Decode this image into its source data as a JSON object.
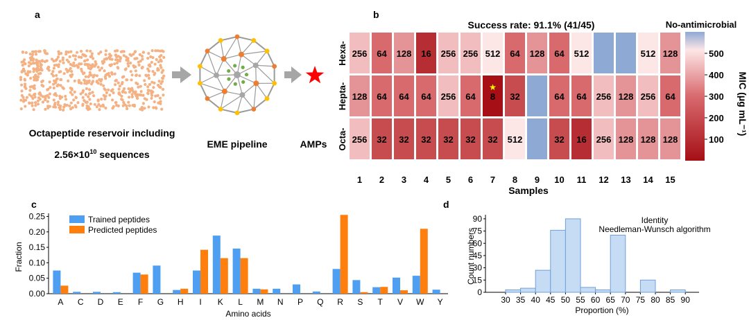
{
  "panels": {
    "a": {
      "letter": "a",
      "reservoir_caption": "Octapeptide reservoir including",
      "reservoir_count_base": "2.56×10",
      "reservoir_count_exp": "10",
      "reservoir_count_suffix": " sequences",
      "pipeline_label": "EME pipeline",
      "output_label": "AMPs"
    },
    "b": {
      "letter": "b"
    },
    "c": {
      "letter": "c"
    },
    "d": {
      "letter": "d"
    }
  },
  "colors": {
    "scatter_dot": "#f4b183",
    "arrow": "#a6a6a6",
    "star": "#ff0000",
    "node_orange": "#ed7d31",
    "node_yellow": "#ffc000",
    "node_green": "#70ad47",
    "node_gray": "#a6a6a6",
    "heat_low": "#a50f15",
    "heat_high": "#fde6e6",
    "no_antimicrobial": "#8eaad4",
    "trained": "#4e9ef2",
    "predicted": "#ff7f0e",
    "hist_fill": "#c6dcf4",
    "hist_edge": "#6ea0d8"
  },
  "chart_data": [
    {
      "id": "b",
      "type": "heatmap",
      "title": "Success rate: 91.1% (41/45)",
      "xlabel": "Samples",
      "rows": [
        "Hexa-",
        "Hepta-",
        "Octa-"
      ],
      "columns": [
        "1",
        "2",
        "3",
        "4",
        "5",
        "6",
        "7",
        "8",
        "9",
        "10",
        "11",
        "12",
        "13",
        "14",
        "15"
      ],
      "values": [
        [
          256,
          64,
          128,
          16,
          256,
          256,
          512,
          64,
          128,
          64,
          512,
          null,
          null,
          512,
          128
        ],
        [
          128,
          64,
          64,
          64,
          256,
          64,
          8,
          32,
          null,
          64,
          64,
          256,
          128,
          256,
          64
        ],
        [
          256,
          32,
          32,
          32,
          32,
          32,
          32,
          512,
          null,
          32,
          16,
          256,
          128,
          128,
          128
        ]
      ],
      "null_label": "No-antimicrobial",
      "highlight": {
        "row": 1,
        "column": 6,
        "marker": "★"
      },
      "colorbar": {
        "label": "MIC (μg mL⁻¹)",
        "range": [
          0,
          600
        ],
        "ticks": [
          100,
          200,
          300,
          400,
          500
        ]
      }
    },
    {
      "id": "c",
      "type": "bar",
      "xlabel": "Amino acids",
      "ylabel": "Fraction",
      "ylim": [
        0,
        0.26
      ],
      "yticks": [
        "0.00",
        "0.05",
        "0.10",
        "0.15",
        "0.20",
        "0.25"
      ],
      "categories": [
        "A",
        "C",
        "D",
        "E",
        "F",
        "G",
        "H",
        "I",
        "K",
        "L",
        "M",
        "N",
        "P",
        "Q",
        "R",
        "S",
        "T",
        "V",
        "W",
        "Y"
      ],
      "series": [
        {
          "name": "Trained peptides",
          "values": [
            0.075,
            0.006,
            0.006,
            0.005,
            0.068,
            0.091,
            0.012,
            0.075,
            0.188,
            0.146,
            0.016,
            0.016,
            0.03,
            0.007,
            0.08,
            0.044,
            0.021,
            0.052,
            0.058,
            0.013
          ]
        },
        {
          "name": "Predicted peptides",
          "values": [
            0.026,
            0,
            0,
            0,
            0.062,
            0,
            0.016,
            0.142,
            0.115,
            0.115,
            0.014,
            0,
            0,
            0,
            0.255,
            0.005,
            0.022,
            0.011,
            0.21,
            0
          ]
        }
      ],
      "legend": "top-left"
    },
    {
      "id": "d",
      "type": "bar",
      "subtype": "histogram",
      "title": "Identity",
      "subtitle": "Needleman-Wunsch  algorithm",
      "xlabel": "Proportion (%)",
      "ylabel": "Count numbers",
      "xticks": [
        "30",
        "35",
        "40",
        "45",
        "50",
        "55",
        "60",
        "65",
        "70",
        "75",
        "80",
        "85",
        "90"
      ],
      "yticks": [
        "0",
        "15",
        "30",
        "45",
        "60",
        "75",
        "90"
      ],
      "ylim": [
        0,
        95
      ],
      "bins": [
        {
          "x0": 30,
          "x1": 35,
          "count": 3
        },
        {
          "x0": 35,
          "x1": 40,
          "count": 5
        },
        {
          "x0": 40,
          "x1": 45,
          "count": 27
        },
        {
          "x0": 45,
          "x1": 50,
          "count": 76
        },
        {
          "x0": 50,
          "x1": 55,
          "count": 90
        },
        {
          "x0": 55,
          "x1": 60,
          "count": 6
        },
        {
          "x0": 60,
          "x1": 65,
          "count": 3
        },
        {
          "x0": 65,
          "x1": 70,
          "count": 70
        },
        {
          "x0": 70,
          "x1": 75,
          "count": 0
        },
        {
          "x0": 75,
          "x1": 80,
          "count": 15
        },
        {
          "x0": 80,
          "x1": 85,
          "count": 0
        },
        {
          "x0": 85,
          "x1": 90,
          "count": 3
        }
      ]
    }
  ]
}
